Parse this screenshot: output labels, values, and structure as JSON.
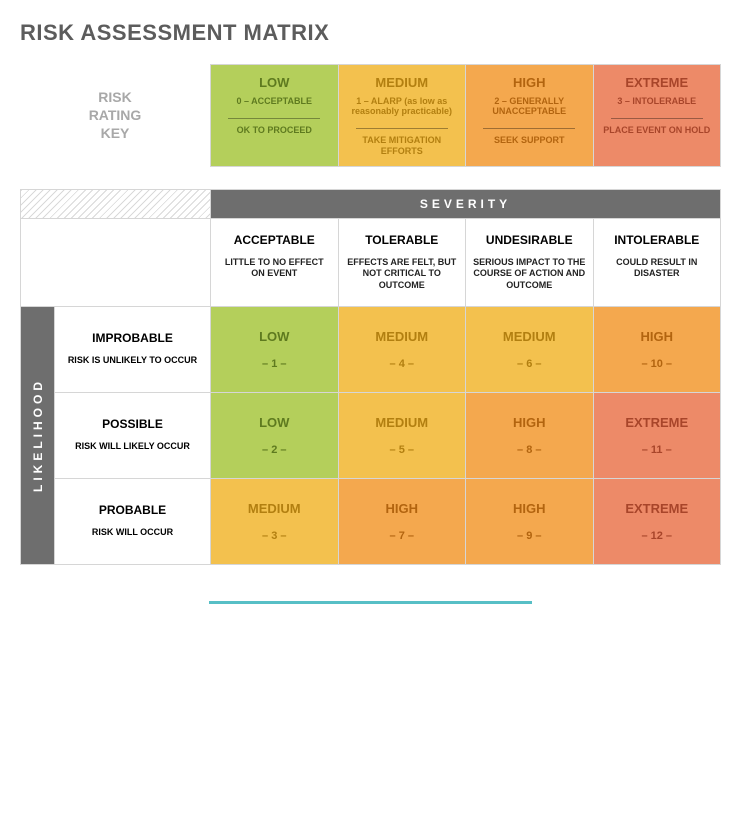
{
  "colors": {
    "title": "#5c5c5c",
    "low": "#b4cf5b",
    "medium": "#f3c14e",
    "high": "#f4a84e",
    "extreme": "#ed8a68",
    "text_low": "#5e7a1f",
    "text_medium": "#b27f10",
    "text_high": "#b2640f",
    "text_extreme": "#a8452a",
    "sev_bar": "#6e6e6e",
    "border": "#d6d6d6",
    "footer": "#57bfc6"
  },
  "title": "RISK ASSESSMENT MATRIX",
  "key_label": [
    "RISK",
    "RATING",
    "KEY"
  ],
  "key": [
    {
      "level": "LOW",
      "bg": "low",
      "tx": "text_low",
      "code": "0 – ACCEPTABLE",
      "action": "OK TO PROCEED"
    },
    {
      "level": "MEDIUM",
      "bg": "medium",
      "tx": "text_medium",
      "code": "1 – ALARP (as low as reasonably practicable)",
      "action": "TAKE MITIGATION EFFORTS"
    },
    {
      "level": "HIGH",
      "bg": "high",
      "tx": "text_high",
      "code": "2 – GENERALLY UNACCEPTABLE",
      "action": "SEEK SUPPORT"
    },
    {
      "level": "EXTREME",
      "bg": "extreme",
      "tx": "text_extreme",
      "code": "3 – INTOLERABLE",
      "action": "PLACE EVENT ON HOLD"
    }
  ],
  "severity_label": "SEVERITY",
  "likelihood_label": "LIKELIHOOD",
  "severity": [
    {
      "title": "ACCEPTABLE",
      "desc": "LITTLE TO NO EFFECT ON EVENT"
    },
    {
      "title": "TOLERABLE",
      "desc": "EFFECTS ARE FELT, BUT NOT CRITICAL TO OUTCOME"
    },
    {
      "title": "UNDESIRABLE",
      "desc": "SERIOUS IMPACT TO THE COURSE OF ACTION AND OUTCOME"
    },
    {
      "title": "INTOLERABLE",
      "desc": "COULD RESULT IN DISASTER"
    }
  ],
  "likelihood": [
    {
      "title": "IMPROBABLE",
      "desc": "RISK IS UNLIKELY TO OCCUR"
    },
    {
      "title": "POSSIBLE",
      "desc": "RISK WILL LIKELY OCCUR"
    },
    {
      "title": "PROBABLE",
      "desc": "RISK WILL OCCUR"
    }
  ],
  "cells": [
    [
      {
        "lvl": "LOW",
        "n": "– 1 –",
        "c": "low"
      },
      {
        "lvl": "MEDIUM",
        "n": "– 4 –",
        "c": "medium"
      },
      {
        "lvl": "MEDIUM",
        "n": "– 6 –",
        "c": "medium"
      },
      {
        "lvl": "HIGH",
        "n": "– 10 –",
        "c": "high"
      }
    ],
    [
      {
        "lvl": "LOW",
        "n": "– 2 –",
        "c": "low"
      },
      {
        "lvl": "MEDIUM",
        "n": "– 5 –",
        "c": "medium"
      },
      {
        "lvl": "HIGH",
        "n": "– 8 –",
        "c": "high"
      },
      {
        "lvl": "EXTREME",
        "n": "– 11 –",
        "c": "extreme"
      }
    ],
    [
      {
        "lvl": "MEDIUM",
        "n": "– 3 –",
        "c": "medium"
      },
      {
        "lvl": "HIGH",
        "n": "– 7 –",
        "c": "high"
      },
      {
        "lvl": "HIGH",
        "n": "– 9 –",
        "c": "high"
      },
      {
        "lvl": "EXTREME",
        "n": "– 12 –",
        "c": "extreme"
      }
    ]
  ]
}
